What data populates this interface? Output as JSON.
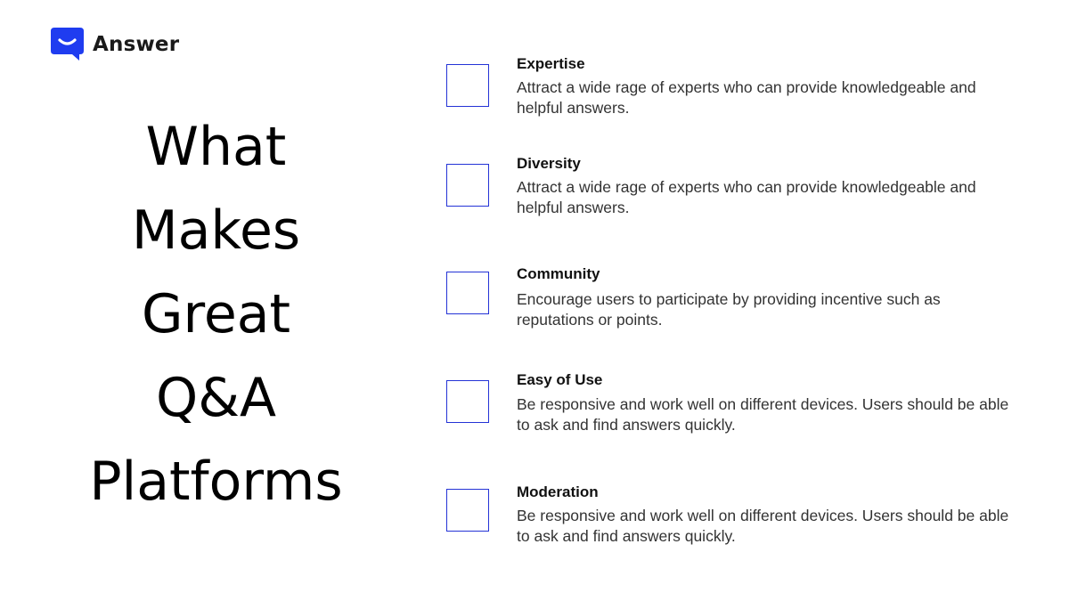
{
  "brand": {
    "name": "Answer",
    "icon": "speech-bubble-icon",
    "color": "#1f3cf0"
  },
  "headline": {
    "lines": [
      "What",
      "Makes",
      "Great",
      "Q&A",
      "Platforms"
    ]
  },
  "accent_color": "#2433d6",
  "features": [
    {
      "title": "Expertise",
      "description": "Attract a wide rage of experts who can provide knowledgeable and helpful answers."
    },
    {
      "title": "Diversity",
      "description": "Attract a wide rage of experts who can provide knowledgeable and helpful answers."
    },
    {
      "title": "Community",
      "description": "Encourage users to participate by providing incentive such as reputations or points."
    },
    {
      "title": "Easy of Use",
      "description": "Be responsive and work well on different devices. Users should be able to ask and find answers quickly."
    },
    {
      "title": "Moderation",
      "description": "Be responsive and work well on different devices. Users should be able to ask and find answers quickly."
    }
  ]
}
